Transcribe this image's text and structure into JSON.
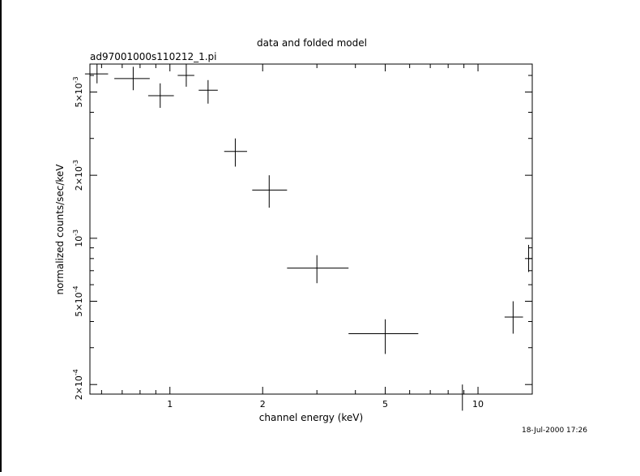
{
  "chart_data": {
    "type": "scatter",
    "title": "data and folded model",
    "subtitle": "ad97001000s110212_1.pi",
    "xlabel": "channel energy (keV)",
    "ylabel": "normalized counts/sec/keV",
    "x_scale": "log",
    "y_scale": "log",
    "xlim": [
      0.55,
      15.0
    ],
    "ylim": [
      0.00018,
      0.0068
    ],
    "x_ticks": [
      {
        "value": 1,
        "label": "1"
      },
      {
        "value": 2,
        "label": "2"
      },
      {
        "value": 5,
        "label": "5"
      },
      {
        "value": 10,
        "label": "10"
      }
    ],
    "y_ticks": [
      {
        "value": 0.0002,
        "mant": "2",
        "exp": "-4"
      },
      {
        "value": 0.0005,
        "mant": "5",
        "exp": "-4"
      },
      {
        "value": 0.001,
        "mant": "",
        "exp": "-3"
      },
      {
        "value": 0.002,
        "mant": "2",
        "exp": "-3"
      },
      {
        "value": 0.005,
        "mant": "5",
        "exp": "-3"
      }
    ],
    "series": [
      {
        "points": [
          {
            "x": 0.58,
            "xlo": 0.53,
            "xhi": 0.63,
            "y": 0.0061,
            "ylo": 0.0055,
            "yhi": 0.0068
          },
          {
            "x": 0.76,
            "xlo": 0.66,
            "xhi": 0.86,
            "y": 0.0058,
            "ylo": 0.0051,
            "yhi": 0.0066
          },
          {
            "x": 0.93,
            "xlo": 0.85,
            "xhi": 1.03,
            "y": 0.0048,
            "ylo": 0.0042,
            "yhi": 0.0055
          },
          {
            "x": 1.13,
            "xlo": 1.06,
            "xhi": 1.2,
            "y": 0.006,
            "ylo": 0.0053,
            "yhi": 0.0068
          },
          {
            "x": 1.33,
            "xlo": 1.24,
            "xhi": 1.43,
            "y": 0.0051,
            "ylo": 0.0044,
            "yhi": 0.0057
          },
          {
            "x": 1.63,
            "xlo": 1.5,
            "xhi": 1.78,
            "y": 0.0026,
            "ylo": 0.0022,
            "yhi": 0.003
          },
          {
            "x": 2.1,
            "xlo": 1.85,
            "xhi": 2.4,
            "y": 0.0017,
            "ylo": 0.0014,
            "yhi": 0.002
          },
          {
            "x": 3.0,
            "xlo": 2.4,
            "xhi": 3.8,
            "y": 0.00072,
            "ylo": 0.00061,
            "yhi": 0.00083
          },
          {
            "x": 5.0,
            "xlo": 3.8,
            "xhi": 6.4,
            "y": 0.00035,
            "ylo": 0.00028,
            "yhi": 0.00041
          },
          {
            "x": 8.9,
            "xlo": 6.4,
            "xhi": 12.2,
            "y": 0.00018,
            "ylo": 0.00015,
            "yhi": 0.0002
          },
          {
            "x": 13.0,
            "xlo": 12.2,
            "xhi": 14.0,
            "y": 0.00042,
            "ylo": 0.00035,
            "yhi": 0.0005
          },
          {
            "x": 14.6,
            "xlo": 14.2,
            "xhi": 15.0,
            "y": 0.0008,
            "ylo": 0.00069,
            "yhi": 0.00093
          }
        ]
      }
    ],
    "grid": false
  },
  "timestamp": "18-Jul-2000 17:26"
}
